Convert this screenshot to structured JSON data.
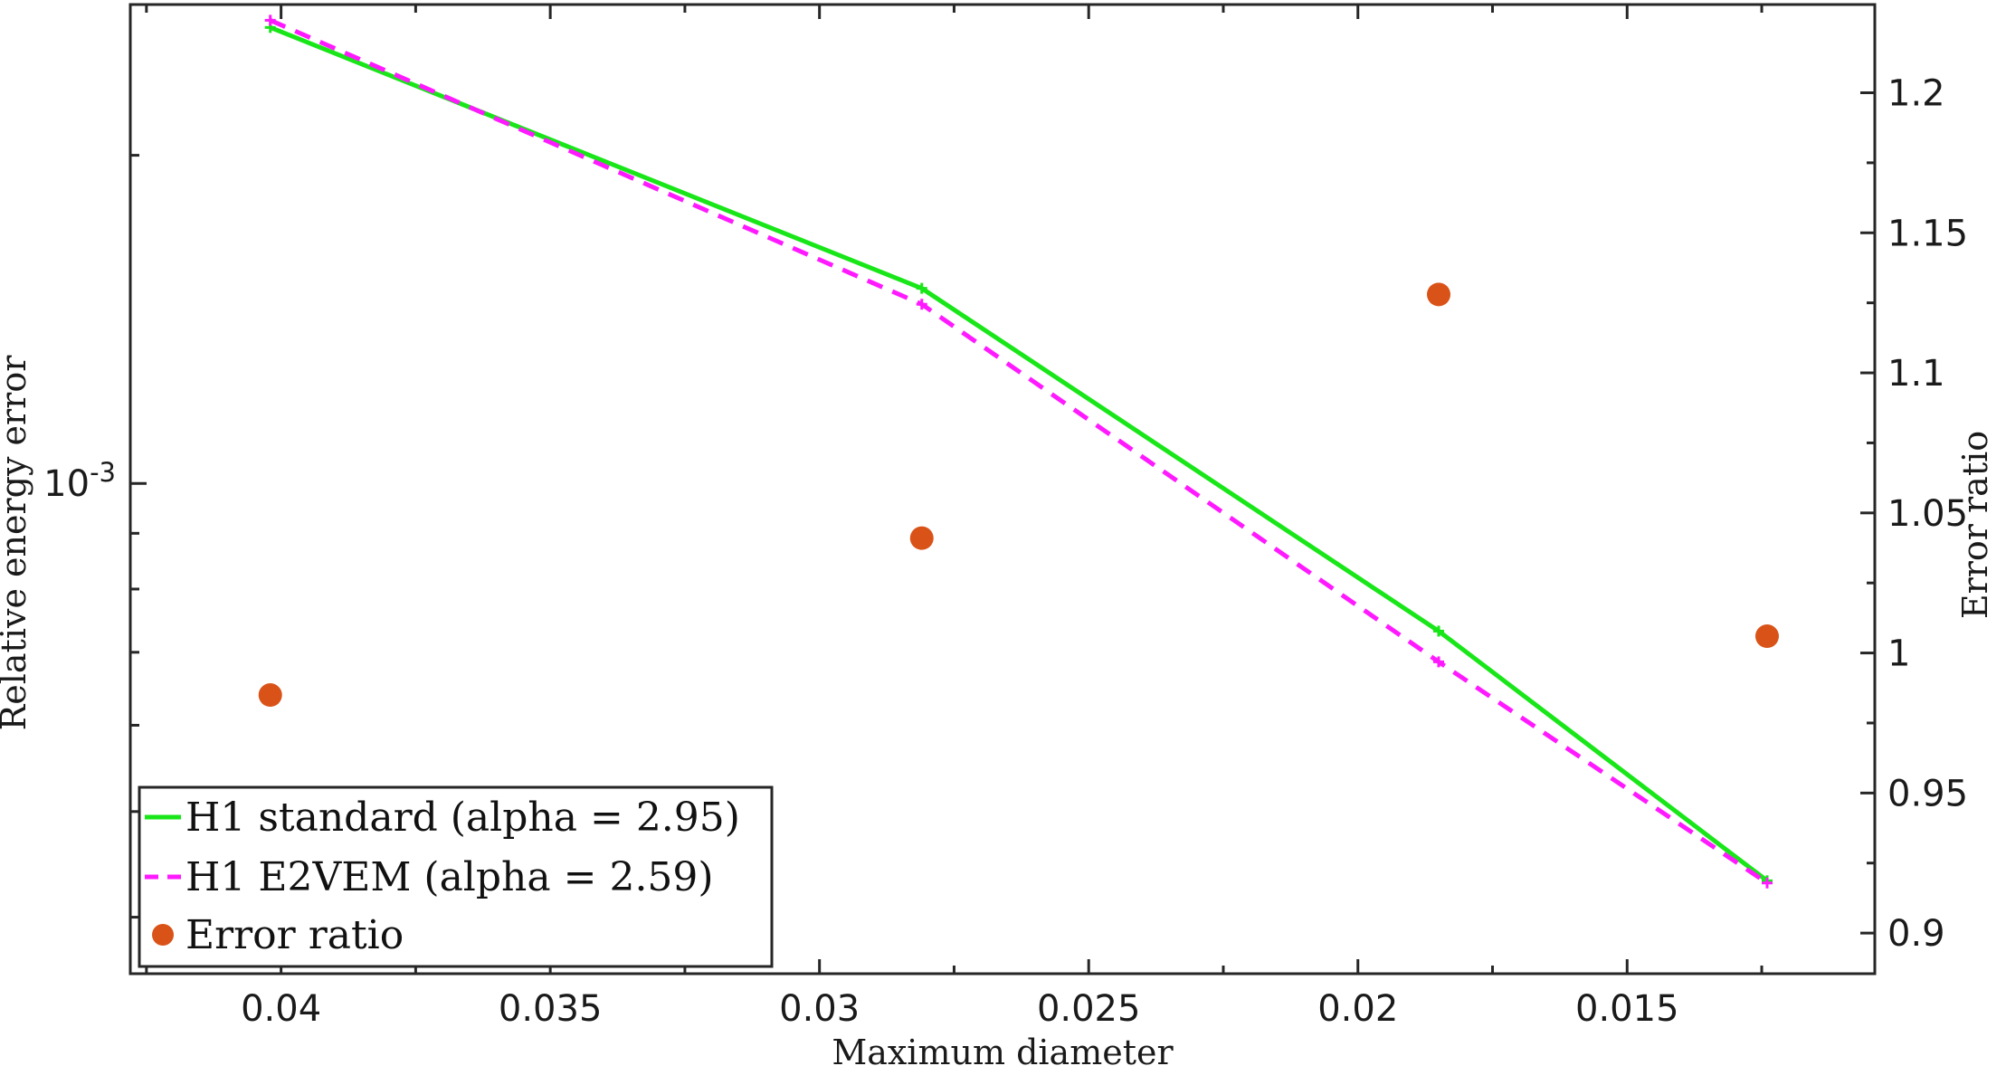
{
  "chart_data": {
    "type": "line",
    "xlabel": "Maximum diameter",
    "ylabel": "Relative energy error",
    "y2label": "Error ratio",
    "x_reversed": true,
    "xlim": [
      0.0104,
      0.0428
    ],
    "xticks": [
      0.04,
      0.035,
      0.03,
      0.025,
      0.02,
      0.015
    ],
    "xtick_labels": [
      "0.04",
      "0.035",
      "0.03",
      "0.025",
      "0.02",
      "0.015"
    ],
    "y_scale": "log",
    "ylim": [
      0.000355,
      0.00275
    ],
    "yticks": [
      0.001
    ],
    "ytick_labels": [
      {
        "base": "10",
        "exp": "-3"
      }
    ],
    "y2lim": [
      0.8855,
      1.2315
    ],
    "y2ticks": [
      0.9,
      0.95,
      1,
      1.05,
      1.1,
      1.15,
      1.2
    ],
    "y2tick_labels": [
      "0.9",
      "0.95",
      "1",
      "1.05",
      "1.1",
      "1.15",
      "1.2"
    ],
    "grid": false,
    "legend_position": "bottom-left",
    "series": [
      {
        "name": "H1 standard (alpha = 2.95)",
        "axis": "left",
        "style": "solid",
        "marker": "plus",
        "color": "#19e619",
        "x": [
          0.0402,
          0.0281,
          0.0185,
          0.0124
        ],
        "y": [
          0.00262,
          0.00151,
          0.000732,
          0.000432
        ]
      },
      {
        "name": "H1 E2VEM (alpha = 2.59)",
        "axis": "left",
        "style": "dashed",
        "marker": "plus",
        "color": "#ff19ff",
        "x": [
          0.0402,
          0.0281,
          0.0185,
          0.0124
        ],
        "y": [
          0.00266,
          0.00146,
          0.000686,
          0.00043
        ]
      },
      {
        "name": "Error ratio",
        "axis": "right",
        "style": "markers",
        "marker": "circle",
        "color": "#d95319",
        "x": [
          0.0402,
          0.0281,
          0.0185,
          0.0124
        ],
        "y": [
          0.985,
          1.041,
          1.128,
          1.006
        ]
      }
    ]
  }
}
